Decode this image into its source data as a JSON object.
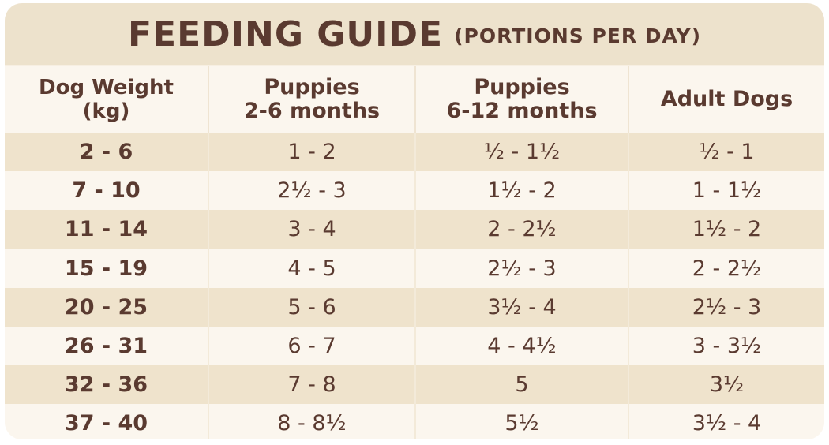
{
  "title": {
    "main": "FEEDING GUIDE",
    "sub": "(PORTIONS PER DAY)"
  },
  "table": {
    "headers": [
      [
        "Dog Weight",
        "(kg)"
      ],
      [
        "Puppies",
        "2-6 months"
      ],
      [
        "Puppies",
        "6-12 months"
      ],
      [
        "Adult Dogs"
      ]
    ],
    "rows": [
      [
        "2 - 6",
        "1 - 2",
        "½ - 1½",
        "½ - 1"
      ],
      [
        "7 - 10",
        "2½ - 3",
        "1½ - 2",
        "1 - 1½"
      ],
      [
        "11 - 14",
        "3 - 4",
        "2 - 2½",
        "1½ - 2"
      ],
      [
        "15 - 19",
        "4 - 5",
        "2½ - 3",
        "2 - 2½"
      ],
      [
        "20 - 25",
        "5 - 6",
        "3½ - 4",
        "2½ - 3"
      ],
      [
        "26 - 31",
        "6 - 7",
        "4 - 4½",
        "3 - 3½"
      ],
      [
        "32 - 36",
        "7 - 8",
        "5",
        "3½"
      ],
      [
        "37 - 40",
        "8 - 8½",
        "5½",
        "3½ - 4"
      ]
    ]
  },
  "colors": {
    "text": "#5a3a30",
    "band": "#efe3cc",
    "background": "#fbf6ee",
    "title_bar": "#ede2cc"
  }
}
